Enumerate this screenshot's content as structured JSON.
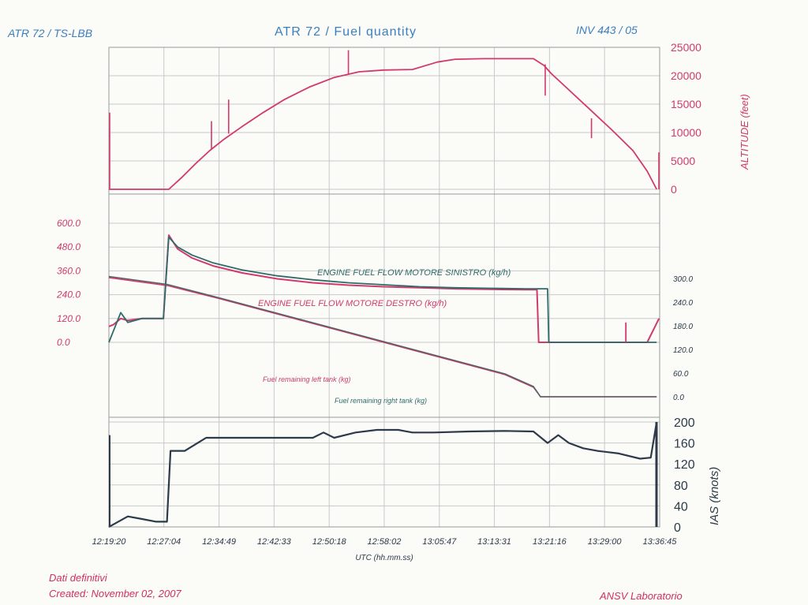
{
  "header": {
    "left": "ATR 72 / TS-LBB",
    "center": "ATR 72 / Fuel quantity",
    "right": "INV 443 / 05"
  },
  "footer": {
    "line1": "Dati definitivi",
    "line2": "Created: November 02, 2007",
    "right": "ANSV Laboratorio"
  },
  "colors": {
    "pink": "#d13a6a",
    "dark": "#2c3a4a",
    "teal": "#2f6b6a",
    "blue": "#3a7fc0",
    "grid": "#c9c9c9"
  },
  "chart_data": [
    {
      "type": "line",
      "panel": "top",
      "ylabel": "ALTITUDE (feet)",
      "ylim": [
        0,
        25000
      ],
      "yticks": [
        "0",
        "5000",
        "10000",
        "15000",
        "20000",
        "25000"
      ],
      "grid": true,
      "series": [
        {
          "x": [
            "12:19:20",
            "12:25:00",
            "12:26:40",
            "12:27:45",
            "12:29:30",
            "12:31:30",
            "12:33:30",
            "12:35:30",
            "12:38:00",
            "12:41:00",
            "12:44:00",
            "12:47:30",
            "12:51:00",
            "12:54:30",
            "12:58:00",
            "13:02:00",
            "13:05:30",
            "13:08:00",
            "13:12:00",
            "13:16:00",
            "13:19:00",
            "13:20:30",
            "13:21:30",
            "13:24:00",
            "13:27:00",
            "13:30:00",
            "13:33:00",
            "13:35:00",
            "13:36:20"
          ],
          "values": [
            0,
            0,
            0,
            0,
            2000,
            4500,
            6800,
            8800,
            11000,
            13500,
            15800,
            18000,
            19700,
            20700,
            21000,
            21100,
            22400,
            22900,
            23000,
            23000,
            23000,
            21800,
            20400,
            17500,
            14000,
            10500,
            6800,
            3200,
            0
          ]
        }
      ]
    },
    {
      "type": "line",
      "panel": "middle",
      "ylim_left": [
        0,
        600
      ],
      "yticks_left": [
        "0.0",
        "120.0",
        "240.0",
        "360.0",
        "480.0",
        "600.0"
      ],
      "ylim_right": [
        0,
        300
      ],
      "yticks_right": [
        "0.0",
        "60.0",
        "120.0",
        "180.0",
        "240.0",
        "300.0"
      ],
      "series": [
        {
          "name": "ENGINE FUEL FLOW MOTORE SINISTRO (kg/h)",
          "x": [
            "12:19:20",
            "12:20:00",
            "12:21:00",
            "12:22:00",
            "12:24:00",
            "12:27:00",
            "12:27:45",
            "12:29:00",
            "12:31:00",
            "12:34:00",
            "12:38:00",
            "12:43:00",
            "12:48:00",
            "12:53:00",
            "12:58:00",
            "13:03:00",
            "13:08:00",
            "13:13:00",
            "13:18:00",
            "13:20:00",
            "13:21:00",
            "13:21:10",
            "13:26:00",
            "13:33:00",
            "13:36:20"
          ],
          "values": [
            0,
            60,
            150,
            100,
            120,
            120,
            530,
            480,
            440,
            400,
            365,
            335,
            315,
            300,
            290,
            280,
            275,
            272,
            270,
            270,
            270,
            0,
            0,
            0,
            0
          ]
        },
        {
          "name": "ENGINE FUEL FLOW MOTORE DESTRO (kg/h)",
          "x": [
            "12:19:20",
            "12:20:00",
            "12:21:00",
            "12:22:00",
            "12:24:00",
            "12:27:00",
            "12:27:45",
            "12:29:00",
            "12:31:00",
            "12:34:00",
            "12:38:00",
            "12:43:00",
            "12:48:00",
            "12:53:00",
            "12:58:00",
            "13:03:00",
            "13:08:00",
            "13:13:00",
            "13:18:00",
            "13:19:30",
            "13:19:45",
            "13:26:00",
            "13:30:00",
            "13:33:00",
            "13:35:00",
            "13:36:40"
          ],
          "values": [
            80,
            90,
            120,
            110,
            120,
            120,
            540,
            470,
            425,
            385,
            350,
            320,
            300,
            288,
            280,
            275,
            270,
            267,
            265,
            265,
            0,
            0,
            0,
            0,
            0,
            120
          ]
        },
        {
          "name": "Fuel remaining left tank (kg)",
          "axis": "right",
          "x": [
            "12:19:20",
            "12:27:30",
            "12:35:00",
            "12:45:00",
            "12:55:00",
            "13:05:00",
            "13:15:00",
            "13:19:00",
            "13:20:00",
            "13:36:20"
          ],
          "values": [
            302,
            282,
            248,
            200,
            152,
            104,
            56,
            24,
            0,
            0
          ]
        },
        {
          "name": "Fuel remaining right tank (kg)",
          "axis": "right",
          "x": [
            "12:19:20",
            "12:27:30",
            "12:35:00",
            "12:45:00",
            "12:55:00",
            "13:05:00",
            "13:15:00",
            "13:19:00",
            "13:20:00",
            "13:36:20"
          ],
          "values": [
            305,
            285,
            250,
            202,
            154,
            106,
            58,
            26,
            0,
            0
          ]
        }
      ]
    },
    {
      "type": "line",
      "panel": "bottom",
      "ylabel": "IAS (knots)",
      "ylim": [
        0,
        200
      ],
      "yticks": [
        "0",
        "40",
        "80",
        "120",
        "160",
        "200"
      ],
      "xlabel": "UTC (hh.mm.ss)",
      "xticks": [
        "12:19:20",
        "12:27:04",
        "12:34:49",
        "12:42:33",
        "12:50:18",
        "12:58:02",
        "13:05:47",
        "13:13:31",
        "13:21:16",
        "13:29:00",
        "13:36:45"
      ],
      "series": [
        {
          "x": [
            "12:19:20",
            "12:20:00",
            "12:22:00",
            "12:24:00",
            "12:26:00",
            "12:27:30",
            "12:28:00",
            "12:30:00",
            "12:33:00",
            "12:35:00",
            "12:40:00",
            "12:45:00",
            "12:48:00",
            "12:49:30",
            "12:51:00",
            "12:54:00",
            "12:57:00",
            "13:00:00",
            "13:02:00",
            "13:05:00",
            "13:10:00",
            "13:15:00",
            "13:19:00",
            "13:21:00",
            "13:22:30",
            "13:24:00",
            "13:26:00",
            "13:28:00",
            "13:31:00",
            "13:34:00",
            "13:35:30",
            "13:36:20"
          ],
          "values": [
            0,
            5,
            20,
            15,
            10,
            10,
            145,
            145,
            170,
            170,
            170,
            170,
            170,
            180,
            170,
            180,
            185,
            185,
            180,
            180,
            182,
            183,
            182,
            160,
            175,
            160,
            150,
            145,
            140,
            130,
            132,
            200
          ]
        }
      ]
    }
  ]
}
